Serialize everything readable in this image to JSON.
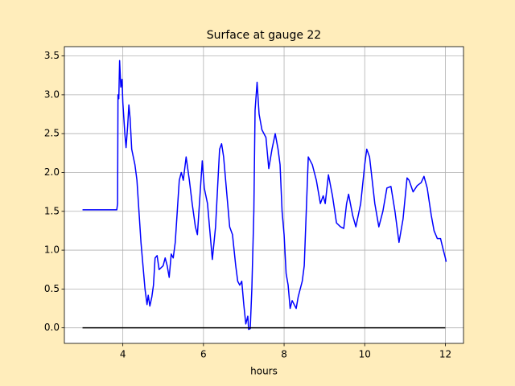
{
  "chart_data": {
    "type": "line",
    "title": "Surface at gauge 22",
    "xlabel": "hours",
    "xlim": [
      2.55,
      12.45
    ],
    "ylim": [
      -0.2,
      3.62
    ],
    "xticks": [
      4,
      6,
      8,
      10,
      12
    ],
    "yticks": [
      {
        "value": 0,
        "label": "0.0"
      },
      0.5,
      {
        "value": 1,
        "label": "1.0"
      },
      1.5,
      {
        "value": 2,
        "label": "2.0"
      },
      2.5,
      {
        "value": 3,
        "label": "3.0"
      },
      3.5
    ],
    "grid": true,
    "series": [
      {
        "color": "#0000ff",
        "x": [
          3.0,
          3.5,
          3.85,
          3.87,
          3.88,
          3.9,
          3.92,
          3.95,
          3.98,
          4.0,
          4.05,
          4.08,
          4.12,
          4.15,
          4.18,
          4.22,
          4.26,
          4.3,
          4.35,
          4.4,
          4.45,
          4.5,
          4.55,
          4.6,
          4.63,
          4.67,
          4.72,
          4.76,
          4.8,
          4.85,
          4.9,
          5.0,
          5.05,
          5.1,
          5.15,
          5.2,
          5.25,
          5.3,
          5.4,
          5.45,
          5.5,
          5.57,
          5.65,
          5.72,
          5.8,
          5.85,
          5.9,
          5.97,
          6.02,
          6.1,
          6.15,
          6.22,
          6.3,
          6.35,
          6.4,
          6.45,
          6.5,
          6.6,
          6.65,
          6.72,
          6.8,
          6.85,
          6.9,
          6.95,
          7.0,
          7.05,
          7.1,
          7.12,
          7.16,
          7.2,
          7.25,
          7.28,
          7.33,
          7.38,
          7.45,
          7.55,
          7.62,
          7.7,
          7.78,
          7.85,
          7.9,
          7.95,
          8.0,
          8.05,
          8.1,
          8.15,
          8.2,
          8.25,
          8.3,
          8.35,
          8.45,
          8.5,
          8.6,
          8.7,
          8.8,
          8.9,
          8.97,
          9.02,
          9.1,
          9.2,
          9.3,
          9.4,
          9.48,
          9.55,
          9.6,
          9.7,
          9.78,
          9.9,
          10.0,
          10.05,
          10.12,
          10.25,
          10.35,
          10.45,
          10.55,
          10.65,
          10.75,
          10.85,
          10.95,
          11.05,
          11.1,
          11.2,
          11.3,
          11.4,
          11.47,
          11.55,
          11.65,
          11.72,
          11.8,
          11.88,
          11.95,
          12.0,
          12.02
        ],
        "values": [
          1.52,
          1.52,
          1.52,
          1.6,
          3.0,
          2.95,
          3.44,
          3.1,
          3.2,
          2.9,
          2.5,
          2.32,
          2.6,
          2.87,
          2.7,
          2.3,
          2.2,
          2.1,
          1.9,
          1.5,
          1.1,
          0.8,
          0.5,
          0.3,
          0.42,
          0.28,
          0.4,
          0.55,
          0.9,
          0.93,
          0.75,
          0.8,
          0.9,
          0.8,
          0.65,
          0.95,
          0.9,
          1.1,
          1.9,
          2.0,
          1.9,
          2.2,
          1.9,
          1.6,
          1.3,
          1.2,
          1.6,
          2.15,
          1.8,
          1.6,
          1.3,
          0.88,
          1.3,
          1.8,
          2.3,
          2.37,
          2.2,
          1.6,
          1.3,
          1.2,
          0.8,
          0.6,
          0.55,
          0.6,
          0.3,
          0.05,
          0.15,
          -0.02,
          -0.01,
          0.5,
          1.5,
          2.8,
          3.16,
          2.75,
          2.55,
          2.45,
          2.05,
          2.3,
          2.5,
          2.3,
          2.1,
          1.5,
          1.2,
          0.7,
          0.55,
          0.25,
          0.35,
          0.3,
          0.25,
          0.4,
          0.6,
          0.8,
          2.2,
          2.1,
          1.9,
          1.6,
          1.7,
          1.6,
          1.97,
          1.7,
          1.35,
          1.3,
          1.28,
          1.6,
          1.72,
          1.45,
          1.3,
          1.6,
          2.1,
          2.3,
          2.2,
          1.6,
          1.3,
          1.5,
          1.8,
          1.82,
          1.5,
          1.1,
          1.4,
          1.93,
          1.9,
          1.75,
          1.83,
          1.87,
          1.95,
          1.8,
          1.45,
          1.25,
          1.15,
          1.15,
          1.0,
          0.9,
          0.85
        ]
      },
      {
        "color": "#000000",
        "x": [
          3,
          12
        ],
        "values": [
          0,
          0
        ]
      }
    ]
  }
}
